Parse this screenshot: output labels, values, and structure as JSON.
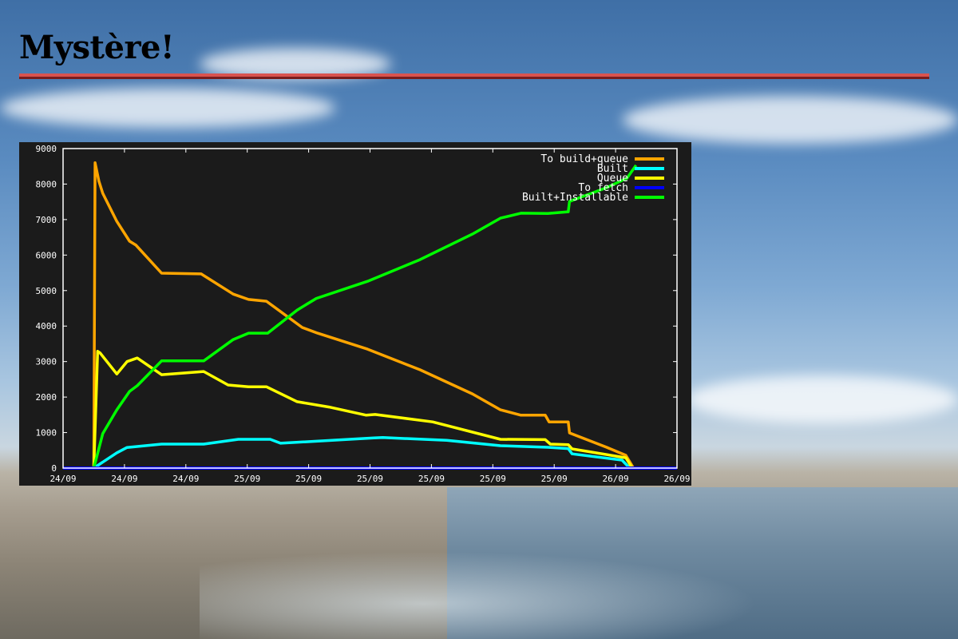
{
  "slide": {
    "title": "Mystère!"
  },
  "colors": {
    "title_rule": "#d9534f",
    "plot_background": "#1b1b1b",
    "axes": "#ffffff"
  },
  "chart_data": {
    "type": "line",
    "title": "",
    "xlabel": "",
    "ylabel": "",
    "x_format": "DD/MM HH:MM",
    "xlim": [
      "24/09 12:00",
      "26/09 04:00"
    ],
    "x_ticks": [
      "24/09 12:00",
      "24/09 16:00",
      "24/09 20:00",
      "25/09 00:00",
      "25/09 04:00",
      "25/09 08:00",
      "25/09 12:00",
      "25/09 16:00",
      "25/09 20:00",
      "26/09 00:00",
      "26/09 04:00"
    ],
    "x_tick_labels": [
      "24/09",
      "24/09",
      "24/09",
      "25/09",
      "25/09",
      "25/09",
      "25/09",
      "25/09",
      "25/09",
      "26/09",
      "26/09"
    ],
    "ylim": [
      0,
      9000
    ],
    "y_ticks": [
      0,
      1000,
      2000,
      3000,
      4000,
      5000,
      6000,
      7000,
      8000,
      9000
    ],
    "y_tick_labels": [
      "0",
      "1000",
      "2000",
      "3000",
      "4000",
      "5000",
      "6000",
      "7000",
      "8000",
      "9000"
    ],
    "grid": false,
    "legend_position": "top-right",
    "series": [
      {
        "name": "To build+queue",
        "color": "#ffa500",
        "points": [
          [
            "24/09 14:00",
            0
          ],
          [
            "24/09 14:05",
            8600
          ],
          [
            "24/09 14:20",
            8080
          ],
          [
            "24/09 14:35",
            7740
          ],
          [
            "24/09 15:30",
            6950
          ],
          [
            "24/09 16:20",
            6390
          ],
          [
            "24/09 16:45",
            6280
          ],
          [
            "24/09 18:25",
            5490
          ],
          [
            "24/09 21:00",
            5470
          ],
          [
            "24/09 23:05",
            4900
          ],
          [
            "25/09 00:05",
            4750
          ],
          [
            "25/09 01:15",
            4700
          ],
          [
            "25/09 03:35",
            3960
          ],
          [
            "25/09 04:35",
            3800
          ],
          [
            "25/09 07:50",
            3350
          ],
          [
            "25/09 11:15",
            2770
          ],
          [
            "25/09 14:40",
            2090
          ],
          [
            "25/09 16:30",
            1640
          ],
          [
            "25/09 17:50",
            1490
          ],
          [
            "25/09 19:25",
            1490
          ],
          [
            "25/09 19:40",
            1300
          ],
          [
            "25/09 20:55",
            1300
          ],
          [
            "25/09 21:00",
            990
          ],
          [
            "25/09 23:25",
            585
          ],
          [
            "26/09 00:40",
            360
          ],
          [
            "26/09 01:10",
            0
          ]
        ]
      },
      {
        "name": "Built",
        "color": "#00ffff",
        "points": [
          [
            "24/09 14:00",
            0
          ],
          [
            "24/09 15:30",
            430
          ],
          [
            "24/09 16:10",
            580
          ],
          [
            "24/09 18:25",
            675
          ],
          [
            "24/09 21:10",
            675
          ],
          [
            "24/09 23:25",
            810
          ],
          [
            "25/09 01:30",
            810
          ],
          [
            "25/09 02:10",
            700
          ],
          [
            "25/09 08:15",
            850
          ],
          [
            "25/09 08:50",
            860
          ],
          [
            "25/09 13:00",
            780
          ],
          [
            "25/09 16:30",
            630
          ],
          [
            "25/09 19:35",
            585
          ],
          [
            "25/09 20:55",
            550
          ],
          [
            "25/09 21:10",
            400
          ],
          [
            "26/09 00:25",
            225
          ],
          [
            "26/09 00:55",
            0
          ]
        ]
      },
      {
        "name": "Queue",
        "color": "#ffff00",
        "points": [
          [
            "24/09 14:00",
            0
          ],
          [
            "24/09 14:15",
            3290
          ],
          [
            "24/09 14:25",
            3240
          ],
          [
            "24/09 15:30",
            2650
          ],
          [
            "24/09 16:10",
            3000
          ],
          [
            "24/09 16:50",
            3100
          ],
          [
            "24/09 18:25",
            2630
          ],
          [
            "24/09 21:10",
            2720
          ],
          [
            "24/09 22:45",
            2340
          ],
          [
            "25/09 00:05",
            2290
          ],
          [
            "25/09 01:15",
            2290
          ],
          [
            "25/09 03:15",
            1870
          ],
          [
            "25/09 05:20",
            1720
          ],
          [
            "25/09 07:45",
            1490
          ],
          [
            "25/09 08:20",
            1510
          ],
          [
            "25/09 12:05",
            1300
          ],
          [
            "25/09 16:30",
            810
          ],
          [
            "25/09 19:25",
            800
          ],
          [
            "25/09 19:45",
            675
          ],
          [
            "25/09 20:55",
            660
          ],
          [
            "25/09 21:10",
            540
          ],
          [
            "26/09 00:40",
            290
          ],
          [
            "26/09 01:05",
            0
          ]
        ]
      },
      {
        "name": "To fetch",
        "color": "#0000ff",
        "points": [
          [
            "24/09 12:00",
            0
          ],
          [
            "26/09 04:00",
            0
          ]
        ]
      },
      {
        "name": "Built+Installable",
        "color": "#00ff00",
        "points": [
          [
            "24/09 14:00",
            0
          ],
          [
            "24/09 14:35",
            970
          ],
          [
            "24/09 15:30",
            1640
          ],
          [
            "24/09 16:20",
            2160
          ],
          [
            "24/09 16:50",
            2320
          ],
          [
            "24/09 18:25",
            3020
          ],
          [
            "24/09 21:10",
            3020
          ],
          [
            "24/09 23:05",
            3620
          ],
          [
            "25/09 00:05",
            3800
          ],
          [
            "25/09 01:20",
            3800
          ],
          [
            "25/09 03:15",
            4450
          ],
          [
            "25/09 04:30",
            4780
          ],
          [
            "25/09 07:50",
            5260
          ],
          [
            "25/09 11:15",
            5870
          ],
          [
            "25/09 14:40",
            6590
          ],
          [
            "25/09 16:30",
            7040
          ],
          [
            "25/09 17:50",
            7180
          ],
          [
            "25/09 19:35",
            7170
          ],
          [
            "25/09 20:55",
            7220
          ],
          [
            "25/09 21:00",
            7510
          ],
          [
            "25/09 23:25",
            7900
          ],
          [
            "26/09 00:45",
            8170
          ],
          [
            "26/09 01:20",
            8530
          ]
        ]
      }
    ]
  }
}
